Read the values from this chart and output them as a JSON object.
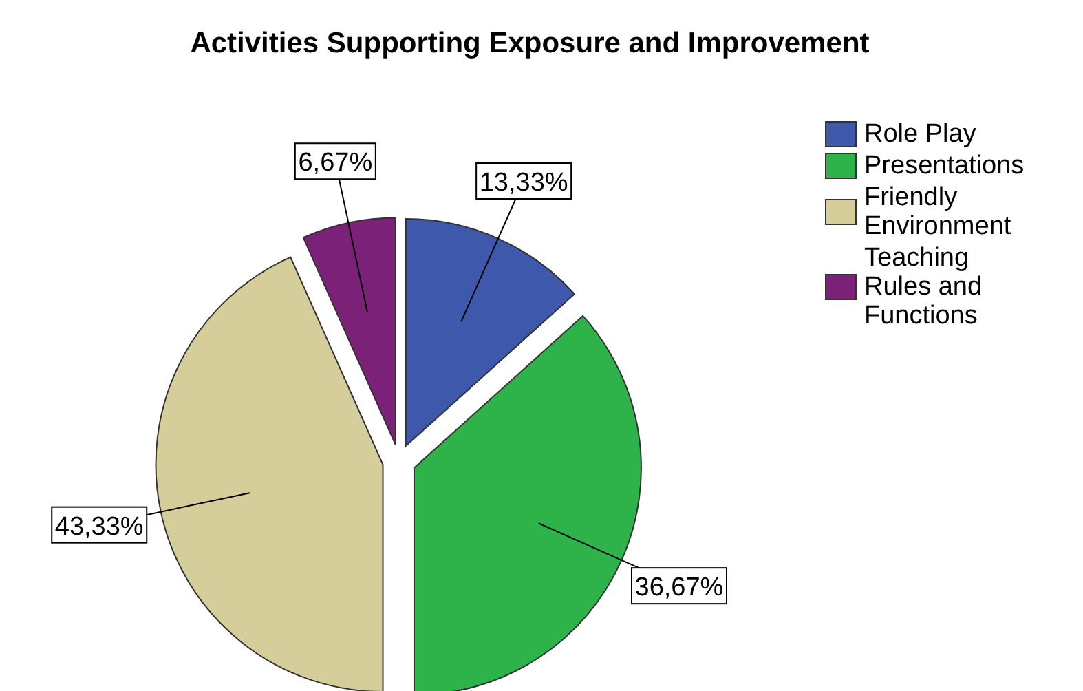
{
  "chart_data": {
    "type": "pie",
    "title": "Activities Supporting Exposure and Improvement",
    "categories": [
      "Role Play",
      "Presentations",
      "Friendly Environment",
      "Teaching Rules and Functions"
    ],
    "values": [
      13.33,
      36.67,
      43.33,
      6.67
    ],
    "colors": [
      "#3e58ac",
      "#2db34a",
      "#d5ce9a",
      "#7b2178"
    ],
    "value_labels": [
      "13,33%",
      "36,67%",
      "43,33%",
      "6,67%"
    ],
    "legend": "top right"
  }
}
